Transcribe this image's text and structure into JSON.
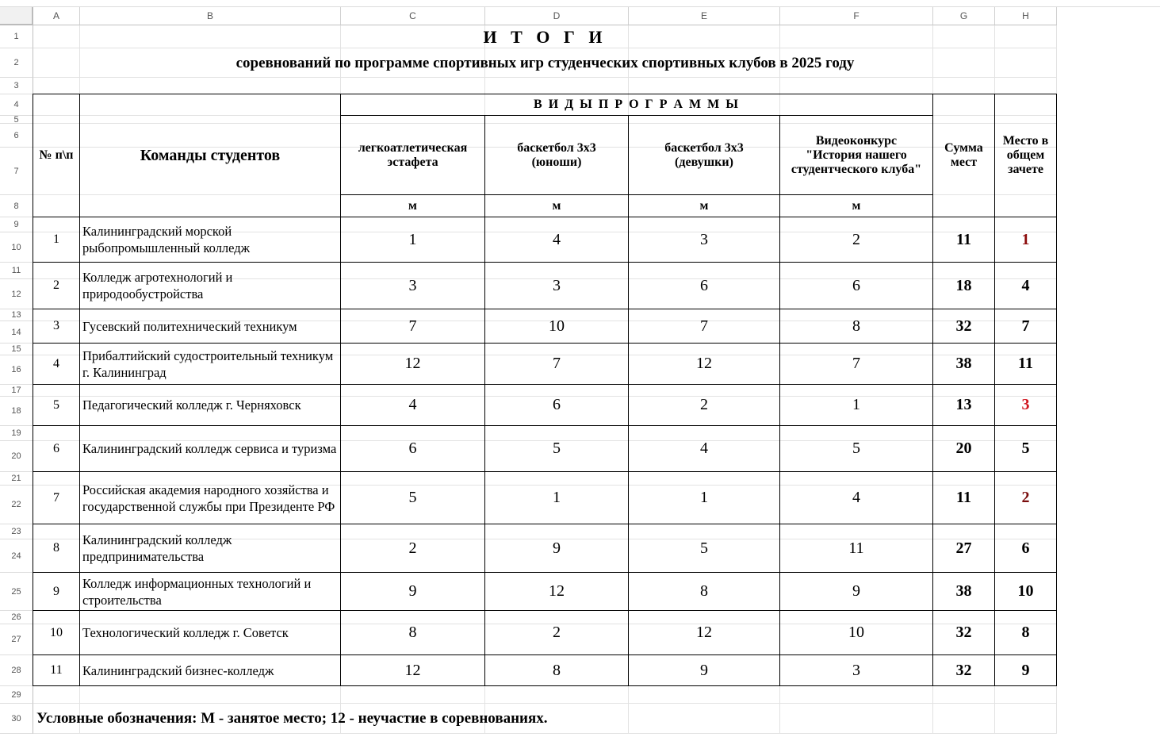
{
  "columns": [
    "A",
    "B",
    "C",
    "D",
    "E",
    "F",
    "G",
    "H"
  ],
  "row_numbers": [
    "1",
    "2",
    "3",
    "4",
    "5",
    "6",
    "7",
    "8",
    "9",
    "10",
    "11",
    "12",
    "13",
    "14",
    "15",
    "16",
    "17",
    "18",
    "19",
    "20",
    "21",
    "22",
    "23",
    "24",
    "25",
    "26",
    "27",
    "28",
    "29",
    "30"
  ],
  "title": "И Т О Г И",
  "subtitle": "соревнований по программе спортивных игр студенческих спортивных клубов в 2025 году",
  "headers": {
    "num": "№ п\\п",
    "teams": "Команды студентов",
    "program": "В И Д Ы П Р О Г Р А М М Ы",
    "events": [
      "легкоатлетическая эстафета",
      "баскетбол 3х3 (юноши)",
      "баскетбол 3х3 (девушки)",
      "Видеоконкурс \"История нашего студентческого клуба\""
    ],
    "unit": "м",
    "sum": "Сумма мест",
    "place": "Место в общем зачете"
  },
  "rows": [
    {
      "n": "1",
      "team": "Калининградский морской рыбопромышленный колледж",
      "v": [
        "1",
        "4",
        "3",
        "2"
      ],
      "sum": "11",
      "place": "1",
      "place_color": "#8b0a0a"
    },
    {
      "n": "2",
      "team": "Колледж агротехнологий и природообустройства",
      "v": [
        "3",
        "3",
        "6",
        "6"
      ],
      "sum": "18",
      "place": "4"
    },
    {
      "n": "3",
      "team": "Гусевский политехнический техникум",
      "v": [
        "7",
        "10",
        "7",
        "8"
      ],
      "sum": "32",
      "place": "7"
    },
    {
      "n": "4",
      "team": "Прибалтийский судостроительный техникум г. Калининград",
      "v": [
        "12",
        "7",
        "12",
        "7"
      ],
      "sum": "38",
      "place": "11"
    },
    {
      "n": "5",
      "team": "Педагогический колледж г. Черняховск",
      "v": [
        "4",
        "6",
        "2",
        "1"
      ],
      "sum": "13",
      "place": "3",
      "place_color": "#d0141e"
    },
    {
      "n": "6",
      "team": "Калининградский колледж сервиса и туризма",
      "v": [
        "6",
        "5",
        "4",
        "5"
      ],
      "sum": "20",
      "place": "5"
    },
    {
      "n": "7",
      "team": "Российская академия народного хозяйства и государственной службы при Президенте РФ",
      "v": [
        "5",
        "1",
        "1",
        "4"
      ],
      "sum": "11",
      "place": "2",
      "place_color": "#7a0c0c"
    },
    {
      "n": "8",
      "team": "Калининградский колледж предпринимательства",
      "v": [
        "2",
        "9",
        "5",
        "11"
      ],
      "sum": "27",
      "place": "6"
    },
    {
      "n": "9",
      "team": "Колледж информационных технологий и строительства",
      "v": [
        "9",
        "12",
        "8",
        "9"
      ],
      "sum": "38",
      "place": "10"
    },
    {
      "n": "10",
      "team": "Технологический колледж г. Советск",
      "v": [
        "8",
        "2",
        "12",
        "10"
      ],
      "sum": "32",
      "place": "8"
    },
    {
      "n": "11",
      "team": "Калининградский бизнес-колледж",
      "v": [
        "12",
        "8",
        "9",
        "3"
      ],
      "sum": "32",
      "place": "9"
    }
  ],
  "legend": "Условные обозначения: М - занятое место; 12 - неучастие в соревнованиях."
}
